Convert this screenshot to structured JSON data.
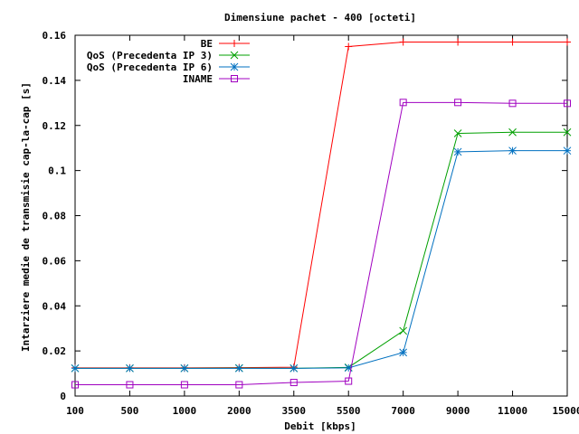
{
  "chart_data": {
    "type": "line",
    "title": "Dimensiune pachet - 400 [octeti]",
    "xlabel": "Debit [kbps]",
    "ylabel": "Intarziere medie de transmisie cap-la-cap [s]",
    "categories": [
      "100",
      "500",
      "1000",
      "2000",
      "3500",
      "5500",
      "7000",
      "9000",
      "11000",
      "15000"
    ],
    "ylim": [
      0,
      0.16
    ],
    "yticks": [
      "0",
      "0.02",
      "0.04",
      "0.06",
      "0.08",
      "0.1",
      "0.12",
      "0.14",
      "0.16"
    ],
    "grid": false,
    "legend_position": "top-right",
    "series": [
      {
        "name": "BE",
        "color": "#ff0000",
        "marker": "plus",
        "values": [
          0.0125,
          0.0125,
          0.0125,
          0.0126,
          0.0128,
          0.155,
          0.157,
          0.157,
          0.157,
          0.157
        ]
      },
      {
        "name": "QoS (Precedenta IP 3)",
        "color": "#00a000",
        "marker": "cross",
        "values": [
          0.0123,
          0.0123,
          0.0123,
          0.0124,
          0.0123,
          0.0127,
          0.0289,
          0.1165,
          0.117,
          0.117
        ]
      },
      {
        "name": "QoS (Precedenta IP 6)",
        "color": "#0070c0",
        "marker": "star",
        "values": [
          0.0123,
          0.0123,
          0.0123,
          0.0123,
          0.0123,
          0.0125,
          0.0193,
          0.1083,
          0.1088,
          0.1088
        ]
      },
      {
        "name": "INAME",
        "color": "#a000c0",
        "marker": "square",
        "values": [
          0.005,
          0.005,
          0.005,
          0.005,
          0.006,
          0.0066,
          0.1302,
          0.1302,
          0.1298,
          0.1298
        ]
      }
    ]
  }
}
